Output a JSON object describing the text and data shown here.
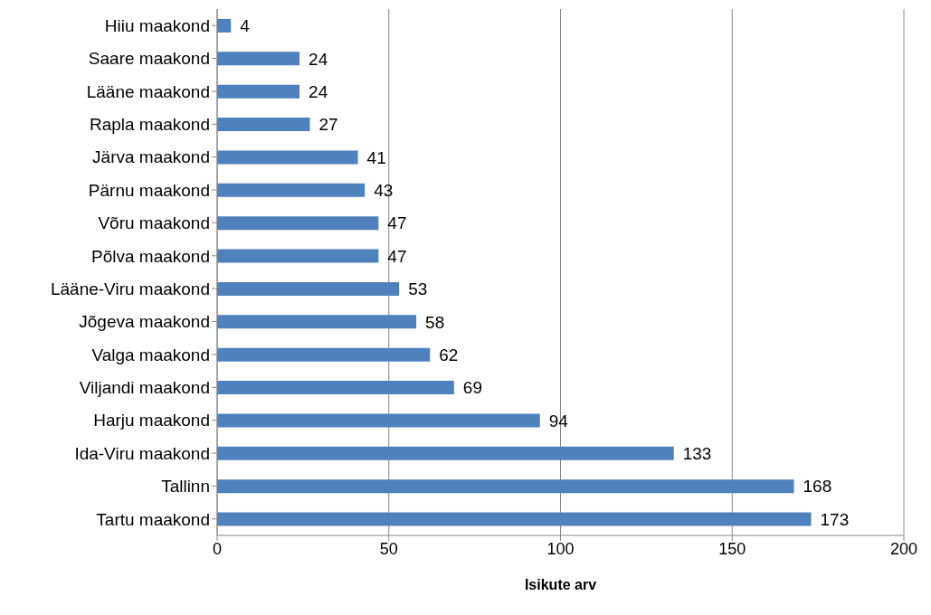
{
  "chart_data": {
    "type": "bar",
    "orientation": "horizontal",
    "xlabel": "Isikute arv",
    "categories": [
      "Hiiu maakond",
      "Saare maakond",
      "Lääne maakond",
      "Rapla maakond",
      "Järva maakond",
      "Pärnu maakond",
      "Võru maakond",
      "Põlva maakond",
      "Lääne-Viru maakond",
      "Jõgeva maakond",
      "Valga maakond",
      "Viljandi maakond",
      "Harju maakond",
      "Ida-Viru maakond",
      "Tallinn",
      "Tartu maakond"
    ],
    "values": [
      4,
      24,
      24,
      27,
      41,
      43,
      47,
      47,
      53,
      58,
      62,
      69,
      94,
      133,
      168,
      173
    ],
    "color": "#4f81bd",
    "xlim": [
      0,
      200
    ],
    "xticks": [
      0,
      50,
      100,
      150,
      200
    ],
    "grid": "x",
    "data_labels": true
  }
}
